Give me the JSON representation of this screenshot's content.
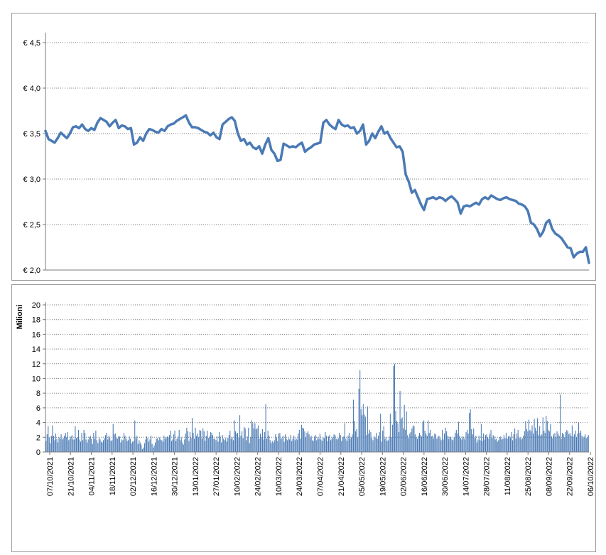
{
  "chart_data": [
    {
      "type": "line",
      "title": "",
      "xlabel": "",
      "ylabel": "",
      "ylim": [
        2.0,
        4.6
      ],
      "yticks": [
        2.0,
        2.5,
        3.0,
        3.5,
        4.0,
        4.5
      ],
      "ytick_labels": [
        "€ 2,0",
        "€ 2,5",
        "€ 3,0",
        "€ 3,5",
        "€ 4,0",
        "€ 4,5"
      ],
      "grid": true,
      "color": "#4a7ab5",
      "series": [
        {
          "values": [
            3.53,
            3.44,
            3.42,
            3.4,
            3.45,
            3.51,
            3.48,
            3.45,
            3.5,
            3.57,
            3.58,
            3.56,
            3.6,
            3.55,
            3.53,
            3.56,
            3.54,
            3.62,
            3.67,
            3.65,
            3.63,
            3.58,
            3.62,
            3.65,
            3.56,
            3.59,
            3.58,
            3.55,
            3.56,
            3.38,
            3.4,
            3.46,
            3.42,
            3.5,
            3.55,
            3.54,
            3.52,
            3.51,
            3.55,
            3.53,
            3.58,
            3.6,
            3.61,
            3.64,
            3.66,
            3.68,
            3.7,
            3.62,
            3.57,
            3.57,
            3.56,
            3.54,
            3.52,
            3.51,
            3.48,
            3.51,
            3.46,
            3.44,
            3.6,
            3.63,
            3.66,
            3.68,
            3.64,
            3.5,
            3.42,
            3.44,
            3.38,
            3.4,
            3.35,
            3.33,
            3.36,
            3.28,
            3.38,
            3.45,
            3.32,
            3.28,
            3.2,
            3.21,
            3.39,
            3.37,
            3.35,
            3.36,
            3.35,
            3.38,
            3.4,
            3.3,
            3.33,
            3.35,
            3.38,
            3.39,
            3.4,
            3.62,
            3.65,
            3.6,
            3.57,
            3.55,
            3.65,
            3.6,
            3.58,
            3.59,
            3.56,
            3.57,
            3.5,
            3.53,
            3.6,
            3.38,
            3.42,
            3.5,
            3.45,
            3.52,
            3.58,
            3.5,
            3.52,
            3.45,
            3.4,
            3.35,
            3.36,
            3.3,
            3.05,
            2.97,
            2.85,
            2.88,
            2.8,
            2.72,
            2.66,
            2.78,
            2.79,
            2.8,
            2.78,
            2.8,
            2.79,
            2.76,
            2.79,
            2.81,
            2.78,
            2.74,
            2.62,
            2.7,
            2.71,
            2.7,
            2.72,
            2.74,
            2.72,
            2.78,
            2.8,
            2.78,
            2.82,
            2.8,
            2.78,
            2.77,
            2.79,
            2.8,
            2.78,
            2.77,
            2.76,
            2.73,
            2.72,
            2.7,
            2.65,
            2.52,
            2.5,
            2.45,
            2.37,
            2.42,
            2.52,
            2.55,
            2.45,
            2.4,
            2.38,
            2.35,
            2.3,
            2.25,
            2.24,
            2.14,
            2.18,
            2.2,
            2.2,
            2.25,
            2.08
          ]
        }
      ]
    },
    {
      "type": "bar",
      "title": "",
      "xlabel": "",
      "ylabel": "Milioni",
      "ylim": [
        0,
        20
      ],
      "yticks": [
        0,
        2,
        4,
        6,
        8,
        10,
        12,
        14,
        16,
        18,
        20
      ],
      "ytick_labels": [
        "0",
        "2",
        "4",
        "6",
        "8",
        "10",
        "12",
        "14",
        "16",
        "18",
        "20"
      ],
      "grid": true,
      "color": "#4a7ab5",
      "x_tick_labels": [
        "07/10/2021",
        "21/10/2021",
        "04/11/2021",
        "18/11/2021",
        "02/12/2021",
        "16/12/2021",
        "30/12/2021",
        "13/01/2022",
        "27/01/2022",
        "10/02/2022",
        "24/02/2022",
        "10/03/2022",
        "24/03/2022",
        "07/04/2022",
        "21/04/2022",
        "05/05/2022",
        "19/05/2022",
        "02/06/2022",
        "16/06/2022",
        "30/06/2022",
        "14/07/2022",
        "28/07/2022",
        "11/08/2022",
        "25/08/2022",
        "08/09/2022",
        "22/09/2022",
        "06/10/2022"
      ],
      "series": [
        {
          "name": "",
          "values": [
            1.5,
            2.4,
            3.5,
            2.0,
            1.2,
            2.2,
            3.6,
            2.2,
            1.6,
            2.5,
            1.8,
            1.3,
            2.0,
            1.8,
            2.4,
            1.7,
            1.9,
            2.2,
            2.6,
            2.0,
            2.7,
            1.6,
            1.8,
            2.1,
            2.3,
            1.7,
            1.7,
            3.5,
            1.9,
            2.0,
            3.0,
            1.7,
            1.4,
            2.6,
            1.6,
            3.0,
            2.6,
            1.7,
            1.3,
            1.7,
            2.0,
            2.2,
            1.8,
            1.1,
            2.6,
            1.8,
            2.9,
            1.6,
            1.2,
            2.0,
            1.7,
            1.4,
            1.3,
            1.6,
            1.9,
            2.3,
            2.6,
            1.7,
            2.2,
            1.9,
            1.5,
            1.6,
            3.8,
            2.4,
            2.5,
            1.9,
            1.8,
            2.1,
            2.1,
            1.3,
            1.7,
            1.6,
            2.6,
            2.2,
            1.8,
            1.5,
            1.6,
            2.1,
            1.8,
            1.2,
            1.4,
            1.5,
            4.3,
            1.9,
            2.2,
            1.1,
            1.6,
            1.3,
            1.0,
            0.4,
            0.6,
            1.2,
            1.7,
            2.1,
            1.9,
            1.4,
            1.7,
            2.2,
            1.1,
            0.6,
            0.9,
            1.3,
            1.8,
            1.9,
            1.6,
            2.0,
            1.7,
            1.6,
            1.4,
            2.2,
            1.8,
            2.0,
            2.1,
            2.0,
            2.3,
            2.9,
            1.5,
            1.7,
            2.4,
            2.9,
            1.5,
            1.8,
            2.1,
            3.0,
            1.6,
            2.0,
            1.3,
            1.0,
            1.7,
            2.5,
            3.3,
            2.8,
            1.5,
            2.7,
            1.9,
            4.6,
            2.6,
            1.8,
            3.3,
            2.2,
            2.5,
            2.0,
            3.0,
            2.9,
            1.8,
            3.2,
            2.8,
            1.5,
            2.2,
            2.9,
            1.9,
            2.1,
            2.7,
            2.6,
            2.3,
            1.8,
            1.8,
            1.6,
            2.1,
            1.4,
            2.7,
            2.1,
            1.3,
            2.3,
            1.8,
            1.6,
            1.9,
            1.4,
            1.9,
            2.3,
            2.9,
            1.8,
            2.0,
            1.6,
            4.3,
            2.8,
            2.5,
            2.6,
            2.0,
            5.0,
            2.2,
            2.8,
            1.9,
            3.4,
            3.2,
            1.6,
            2.1,
            3.3,
            1.2,
            2.0,
            4.3,
            3.9,
            3.2,
            3.9,
            3.1,
            3.2,
            3.6,
            1.8,
            2.5,
            2.0,
            3.1,
            1.7,
            2.7,
            6.5,
            1.8,
            2.9,
            2.2,
            1.6,
            1.2,
            1.5,
            1.3,
            1.6,
            2.4,
            2.0,
            1.5,
            2.5,
            2.6,
            1.8,
            1.9,
            2.2,
            1.4,
            2.4,
            1.8,
            1.6,
            1.9,
            1.7,
            2.3,
            1.5,
            1.8,
            2.2,
            1.6,
            1.9,
            1.7,
            2.5,
            3.0,
            1.8,
            3.7,
            3.3,
            3.2,
            2.8,
            2.0,
            2.6,
            2.8,
            2.4,
            1.9,
            2.2,
            1.6,
            1.5,
            2.1,
            2.3,
            1.6,
            2.0,
            1.8,
            2.5,
            1.7,
            1.5,
            2.0,
            1.9,
            2.7,
            2.2,
            1.5,
            2.1,
            2.3,
            1.6,
            1.8,
            2.0,
            2.4,
            2.3,
            1.8,
            1.7,
            1.9,
            2.6,
            2.3,
            1.5,
            2.0,
            2.1,
            3.9,
            1.8,
            1.5,
            2.2,
            2.6,
            1.8,
            2.0,
            2.4,
            7.1,
            4.2,
            2.8,
            3.1,
            2.0,
            8.6,
            11.1,
            5.8,
            5.0,
            6.5,
            5.1,
            4.8,
            2.3,
            6.2,
            2.5,
            3.0,
            2.7,
            1.9,
            1.6,
            2.2,
            2.0,
            2.6,
            1.8,
            2.2,
            2.7,
            5.2,
            1.4,
            2.9,
            3.5,
            1.8,
            2.0,
            1.5,
            1.6,
            2.1,
            5.2,
            2.0,
            3.7,
            11.7,
            12.0,
            5.6,
            4.2,
            3.9,
            2.7,
            8.3,
            4.5,
            4.7,
            3.2,
            6.4,
            3.0,
            5.5,
            2.3,
            1.9,
            2.5,
            2.7,
            3.2,
            3.6,
            3.5,
            2.4,
            2.0,
            1.8,
            2.2,
            2.6,
            2.3,
            2.1,
            4.1,
            4.3,
            2.9,
            2.5,
            2.2,
            4.3,
            2.6,
            3.0,
            2.1,
            2.2,
            1.8,
            2.5,
            2.4,
            1.8,
            2.1,
            2.2,
            1.9,
            1.6,
            3.0,
            1.7,
            2.5,
            3.3,
            2.8,
            2.2,
            1.8,
            2.1,
            2.0,
            1.7,
            1.6,
            2.0,
            2.6,
            3.0,
            2.5,
            4.1,
            2.2,
            1.9,
            1.7,
            2.1,
            2.0,
            1.7,
            2.7,
            3.0,
            2.5,
            5.3,
            5.8,
            3.1,
            2.4,
            3.2,
            1.9,
            2.2,
            1.3,
            1.7,
            2.2,
            1.6,
            3.8,
            1.5,
            2.5,
            1.7,
            2.3,
            2.4,
            2.0,
            1.8,
            2.5,
            3.0,
            1.9,
            2.3,
            2.1,
            1.7,
            1.8,
            1.4,
            1.6,
            2.0,
            2.1,
            1.7,
            1.8,
            2.3,
            1.9,
            2.6,
            1.8,
            2.1,
            2.2,
            1.9,
            2.7,
            1.6,
            2.4,
            3.2,
            1.8,
            2.5,
            3.0,
            1.9,
            2.0,
            1.7,
            1.9,
            2.2,
            2.8,
            4.2,
            3.1,
            2.8,
            4.4,
            3.0,
            2.8,
            3.6,
            2.5,
            4.5,
            3.3,
            2.9,
            4.6,
            2.3,
            3.5,
            2.2,
            2.4,
            4.7,
            2.9,
            2.6,
            4.9,
            4.2,
            3.0,
            2.8,
            3.8,
            2.1,
            1.9,
            2.4,
            2.6,
            2.0,
            2.8,
            2.5,
            2.2,
            7.8,
            1.8,
            2.6,
            2.4,
            2.0,
            2.7,
            3.0,
            2.8,
            2.4,
            2.6,
            2.2,
            3.6,
            2.1,
            2.4,
            2.9,
            2.0,
            2.5,
            4.0,
            2.6,
            2.9,
            2.2,
            1.9,
            2.1,
            2.4,
            1.9,
            2.0,
            2.3
          ]
        }
      ]
    }
  ]
}
